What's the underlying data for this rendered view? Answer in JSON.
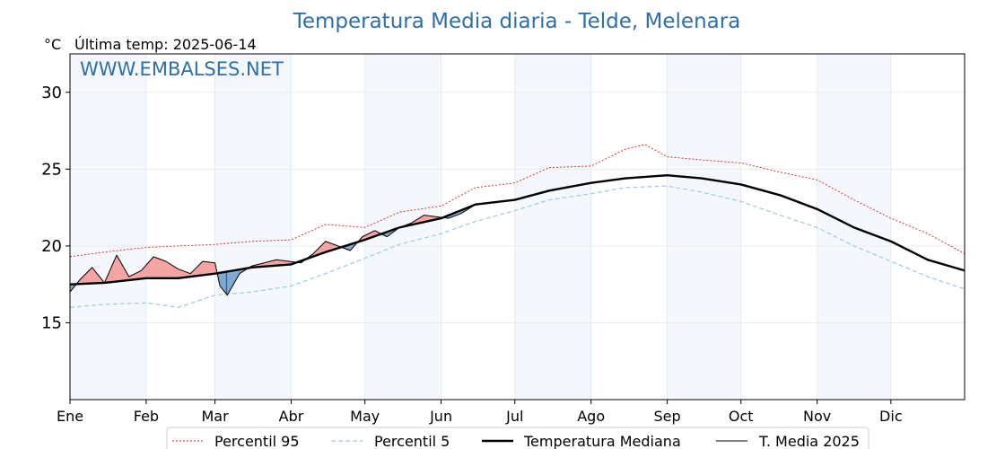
{
  "chart_data": {
    "type": "line",
    "title": "Temperatura Media diaria - Telde, Melenara",
    "unit": "°C",
    "last_temp": "Última temp: 2025-06-14",
    "watermark": "WWW.EMBALSES.NET",
    "x_range_days": [
      1,
      365
    ],
    "ylim": [
      10,
      32.5
    ],
    "yticks": [
      15,
      20,
      25,
      30
    ],
    "months": [
      "Ene",
      "Feb",
      "Mar",
      "Abr",
      "May",
      "Jun",
      "Jul",
      "Ago",
      "Sep",
      "Oct",
      "Nov",
      "Dic"
    ],
    "month_start_days": [
      1,
      32,
      60,
      91,
      121,
      152,
      182,
      213,
      244,
      274,
      305,
      335
    ],
    "grid": true,
    "legend_position": "bottom",
    "colors": {
      "p95": "#e31a1c",
      "p5": "#9ecae1",
      "median": "#000000",
      "current": "#000000",
      "above": "#f4a3a3",
      "above_strong": "#f25d5d",
      "below": "#7ea9cf",
      "below_strong": "#2c5f94",
      "band": "#f4f8fc",
      "title": "#2f6fa8"
    },
    "series": [
      {
        "key": "p95",
        "name": "Percentil 95",
        "x": [
          1,
          15,
          32,
          45,
          60,
          75,
          91,
          105,
          121,
          135,
          152,
          166,
          182,
          196,
          213,
          227,
          235,
          244,
          258,
          274,
          290,
          305,
          320,
          335,
          350,
          365
        ],
        "y": [
          19.3,
          19.6,
          19.9,
          20.0,
          20.1,
          20.3,
          20.4,
          21.4,
          21.2,
          22.2,
          22.6,
          23.8,
          24.1,
          25.1,
          25.2,
          26.3,
          26.6,
          25.8,
          25.6,
          25.4,
          24.8,
          24.3,
          23.0,
          21.8,
          20.8,
          19.5
        ]
      },
      {
        "key": "p5",
        "name": "Percentil 5",
        "x": [
          1,
          15,
          32,
          45,
          60,
          75,
          91,
          105,
          121,
          135,
          152,
          166,
          182,
          196,
          213,
          227,
          244,
          258,
          274,
          290,
          305,
          320,
          335,
          350,
          365
        ],
        "y": [
          16.0,
          16.2,
          16.3,
          16.0,
          16.8,
          17.0,
          17.4,
          18.2,
          19.2,
          20.1,
          20.8,
          21.6,
          22.3,
          23.0,
          23.4,
          23.8,
          23.9,
          23.5,
          22.9,
          22.0,
          21.2,
          20.0,
          19.0,
          18.0,
          17.2
        ]
      },
      {
        "key": "median",
        "name": "Temperatura Mediana",
        "x": [
          1,
          15,
          32,
          45,
          60,
          75,
          91,
          105,
          121,
          135,
          152,
          166,
          182,
          196,
          213,
          227,
          244,
          258,
          274,
          290,
          305,
          320,
          335,
          350,
          365
        ],
        "y": [
          17.5,
          17.6,
          17.9,
          17.9,
          18.2,
          18.6,
          18.8,
          19.6,
          20.4,
          21.2,
          21.8,
          22.7,
          23.0,
          23.6,
          24.1,
          24.4,
          24.6,
          24.4,
          24.0,
          23.3,
          22.4,
          21.2,
          20.3,
          19.1,
          18.4
        ]
      },
      {
        "key": "current",
        "name": "T. Media 2025",
        "x": [
          1,
          5,
          10,
          15,
          20,
          25,
          30,
          35,
          40,
          45,
          50,
          55,
          60,
          62,
          65,
          70,
          75,
          80,
          85,
          90,
          95,
          100,
          105,
          110,
          115,
          120,
          125,
          130,
          135,
          140,
          145,
          150,
          155,
          160,
          165
        ],
        "y": [
          17.0,
          17.8,
          18.6,
          17.6,
          19.4,
          18.0,
          18.4,
          19.3,
          19.0,
          18.5,
          18.2,
          19.0,
          18.9,
          17.4,
          16.8,
          18.2,
          18.7,
          18.9,
          19.1,
          19.0,
          18.9,
          19.5,
          20.3,
          20.0,
          19.7,
          20.6,
          21.0,
          20.6,
          21.2,
          21.5,
          22.0,
          21.9,
          21.8,
          22.1,
          22.6
        ]
      }
    ]
  }
}
